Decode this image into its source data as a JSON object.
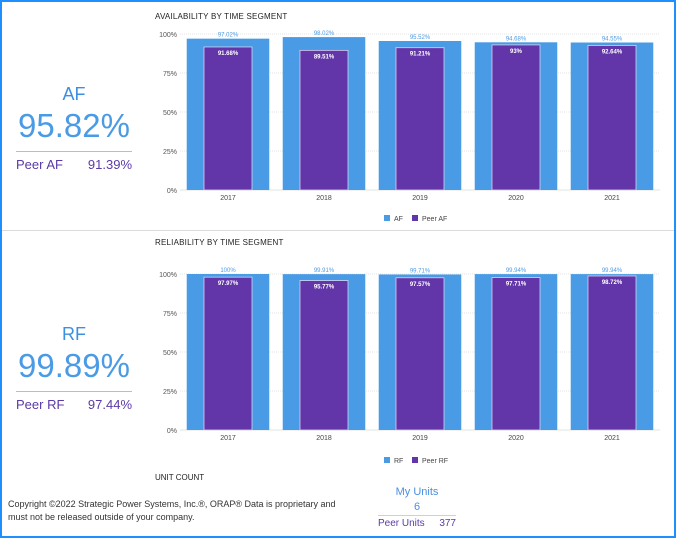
{
  "af_kpi": {
    "code": "AF",
    "value": "95.82%",
    "peer_label": "Peer AF",
    "peer_value": "91.39%"
  },
  "rf_kpi": {
    "code": "RF",
    "value": "99.89%",
    "peer_label": "Peer RF",
    "peer_value": "97.44%"
  },
  "availability_title": "AVAILABILITY BY TIME SEGMENT",
  "reliability_title": "RELIABILITY BY TIME SEGMENT",
  "unit_count_title": "UNIT COUNT",
  "units": {
    "my_label": "My Units",
    "my_value": "6",
    "peer_label": "Peer Units",
    "peer_value": "377"
  },
  "footer": "Copyright ©2022 Strategic Power Systems, Inc.®, ORAP® Data is proprietary and must not be released outside of your company.",
  "colors": {
    "primary": "#4a9be6",
    "peer": "#6236a8",
    "border": "#1f8fff"
  },
  "chart_data": [
    {
      "type": "bar",
      "title": "AVAILABILITY BY TIME SEGMENT",
      "categories": [
        "2017",
        "2018",
        "2019",
        "2020",
        "2021"
      ],
      "series": [
        {
          "name": "AF",
          "values": [
            97.02,
            98.02,
            95.52,
            94.68,
            94.55
          ],
          "labels": [
            "97.02%",
            "98.02%",
            "95.52%",
            "94.68%",
            "94.55%"
          ]
        },
        {
          "name": "Peer AF",
          "values": [
            91.68,
            89.51,
            91.21,
            93,
            92.64
          ],
          "labels": [
            "91.68%",
            "89.51%",
            "91.21%",
            "93%",
            "92.64%"
          ]
        }
      ],
      "yticks": [
        "0%",
        "25%",
        "50%",
        "75%",
        "100%"
      ],
      "ylim": [
        0,
        100
      ],
      "legend": "bottom"
    },
    {
      "type": "bar",
      "title": "RELIABILITY BY TIME SEGMENT",
      "categories": [
        "2017",
        "2018",
        "2019",
        "2020",
        "2021"
      ],
      "series": [
        {
          "name": "RF",
          "values": [
            100,
            99.91,
            99.71,
            99.94,
            99.94
          ],
          "labels": [
            "100%",
            "99.91%",
            "99.71%",
            "99.94%",
            "99.94%"
          ]
        },
        {
          "name": "Peer RF",
          "values": [
            97.97,
            95.77,
            97.57,
            97.71,
            98.72
          ],
          "labels": [
            "97.97%",
            "95.77%",
            "97.57%",
            "97.71%",
            "98.72%"
          ]
        }
      ],
      "yticks": [
        "0%",
        "25%",
        "50%",
        "75%",
        "100%"
      ],
      "ylim": [
        0,
        100
      ],
      "legend": "bottom"
    }
  ]
}
